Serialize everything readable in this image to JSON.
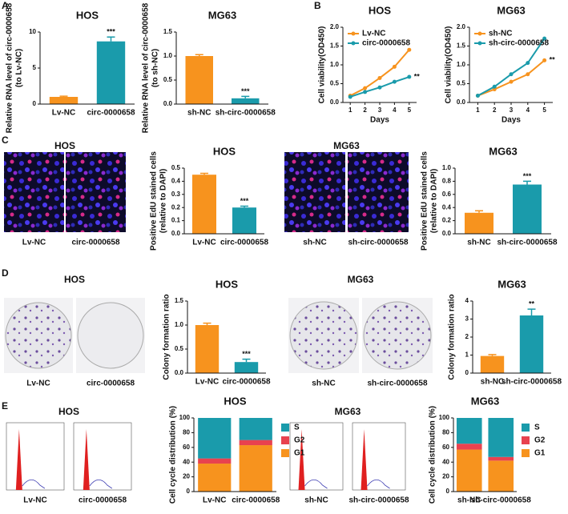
{
  "figure": {
    "panels": [
      "A",
      "B",
      "C",
      "D",
      "E"
    ],
    "image_groups": [
      {
        "title": "HOS",
        "labels": [
          "Lv-NC",
          "circ-0000658"
        ]
      },
      {
        "title": "MG63",
        "labels": [
          "sh-NC",
          "sh-circ-0000658"
        ]
      },
      {
        "title": "HOS",
        "labels": [
          "Lv-NC",
          "circ-0000658"
        ]
      },
      {
        "title": "MG63",
        "labels": [
          "sh-NC",
          "sh-circ-0000658"
        ]
      },
      {
        "title": "HOS",
        "labels": [
          "Lv-NC",
          "circ-0000658"
        ]
      },
      {
        "title": "MG63",
        "labels": [
          "sh-NC",
          "sh-circ-0000658"
        ]
      }
    ]
  },
  "chart_data": [
    {
      "type": "bar",
      "title": "HOS",
      "ylabel": [
        "Relative RNA level of circ-0000658",
        "(to Lv-NC)"
      ],
      "categories": [
        "Lv-NC",
        "circ-0000658"
      ],
      "values": [
        1,
        8.7
      ],
      "errors": [
        0.1,
        0.6
      ],
      "colors": [
        "#f7931e",
        "#1a9bab"
      ],
      "annotation": "***",
      "ylim": [
        0,
        10
      ],
      "yticks": [
        0,
        5,
        10
      ]
    },
    {
      "type": "bar",
      "title": "MG63",
      "ylabel": [
        "Relative RNA level of circ-0000658",
        "(to sh-NC)"
      ],
      "categories": [
        "sh-NC",
        "sh-circ-0000658"
      ],
      "values": [
        1.0,
        0.12
      ],
      "errors": [
        0.03,
        0.04
      ],
      "colors": [
        "#f7931e",
        "#1a9bab"
      ],
      "annotation": "***",
      "ylim": [
        0,
        1.5
      ],
      "yticks": [
        {
          "value": 0,
          "label": "0.0"
        },
        0.5,
        {
          "value": 1,
          "label": "1.0"
        },
        1.5
      ]
    },
    {
      "type": "line",
      "title": "HOS",
      "ylabel": [
        "Cell viability(OD450)"
      ],
      "xlabel": "Days",
      "x": [
        1,
        2,
        3,
        4,
        5
      ],
      "xlim": [
        0.5,
        5.5
      ],
      "xticks": [
        1,
        2,
        3,
        4,
        5
      ],
      "series": [
        {
          "name": "Lv-NC",
          "color": "#f7931e",
          "values": [
            0.18,
            0.38,
            0.65,
            0.95,
            1.4
          ]
        },
        {
          "name": "circ-0000658",
          "color": "#1a9bab",
          "values": [
            0.15,
            0.28,
            0.4,
            0.55,
            0.68
          ]
        }
      ],
      "annotation": "**",
      "ylim": [
        0,
        2
      ],
      "yticks": [
        {
          "value": 0,
          "label": "0.0"
        },
        0.5,
        {
          "value": 1,
          "label": "1.0"
        },
        1.5,
        {
          "value": 2,
          "label": "2.0"
        }
      ]
    },
    {
      "type": "line",
      "title": "MG63",
      "ylabel": [
        "Cell viability(OD450)"
      ],
      "xlabel": "Days",
      "x": [
        1,
        2,
        3,
        4,
        5
      ],
      "xlim": [
        0.5,
        5.5
      ],
      "xticks": [
        1,
        2,
        3,
        4,
        5
      ],
      "series": [
        {
          "name": "sh-NC",
          "color": "#f7931e",
          "values": [
            0.18,
            0.35,
            0.55,
            0.75,
            1.12
          ]
        },
        {
          "name": "sh-circ-0000658",
          "color": "#1a9bab",
          "values": [
            0.18,
            0.42,
            0.75,
            1.05,
            1.7
          ]
        }
      ],
      "annotation": "**",
      "ylim": [
        0,
        2
      ],
      "yticks": [
        {
          "value": 0,
          "label": "0.0"
        },
        0.5,
        {
          "value": 1,
          "label": "1.0"
        },
        1.5,
        {
          "value": 2,
          "label": "2.0"
        }
      ]
    },
    {
      "type": "bar",
      "title": "HOS",
      "ylabel": [
        "Positive EdU stained cells",
        "(relative to DAPI)"
      ],
      "categories": [
        "Lv-NC",
        "circ-0000658"
      ],
      "values": [
        0.45,
        0.2
      ],
      "errors": [
        0.01,
        0.01
      ],
      "colors": [
        "#f7931e",
        "#1a9bab"
      ],
      "annotation": "***",
      "ylim": [
        0,
        0.5
      ],
      "yticks": [
        {
          "value": 0,
          "label": "0.0"
        },
        0.1,
        0.2,
        0.3,
        0.4,
        0.5
      ]
    },
    {
      "type": "bar",
      "title": "MG63",
      "ylabel": [
        "Positive EdU stained cells",
        "(relative to DAPI)"
      ],
      "categories": [
        "sh-NC",
        "sh-circ-0000658"
      ],
      "values": [
        0.32,
        0.75
      ],
      "errors": [
        0.03,
        0.05
      ],
      "colors": [
        "#f7931e",
        "#1a9bab"
      ],
      "annotation": "***",
      "ylim": [
        0,
        1
      ],
      "yticks": [
        {
          "value": 0,
          "label": "0.0"
        },
        0.2,
        0.4,
        0.6,
        0.8,
        {
          "value": 1,
          "label": "1.0"
        }
      ]
    },
    {
      "type": "bar",
      "title": "HOS",
      "ylabel": [
        "Colony formation ratio"
      ],
      "categories": [
        "Lv-NC",
        "circ-0000658"
      ],
      "values": [
        1.0,
        0.23
      ],
      "errors": [
        0.04,
        0.06
      ],
      "colors": [
        "#f7931e",
        "#1a9bab"
      ],
      "annotation": "***",
      "ylim": [
        0,
        1.5
      ],
      "yticks": [
        {
          "value": 0,
          "label": "0.0"
        },
        0.5,
        {
          "value": 1,
          "label": "1.0"
        },
        1.5
      ]
    },
    {
      "type": "bar",
      "title": "MG63",
      "ylabel": [
        "Colony formation ratio"
      ],
      "categories": [
        "sh-NC",
        "sh-circ-0000658"
      ],
      "values": [
        0.95,
        3.2
      ],
      "errors": [
        0.08,
        0.35
      ],
      "colors": [
        "#f7931e",
        "#1a9bab"
      ],
      "annotation": "**",
      "ylim": [
        0,
        4
      ],
      "yticks": [
        0,
        1,
        2,
        3,
        4
      ]
    },
    {
      "type": "stacked_bar",
      "title": "HOS",
      "ylabel": [
        "Cell cycle distribution (%)"
      ],
      "categories": [
        "Lv-NC",
        "circ-0000658"
      ],
      "series": [
        {
          "name": "S",
          "color": "#1a9bab",
          "values": [
            55,
            30
          ]
        },
        {
          "name": "G2",
          "color": "#e8424f",
          "values": [
            7,
            7
          ]
        },
        {
          "name": "G1",
          "color": "#f7931e",
          "values": [
            38,
            63
          ]
        }
      ],
      "ylim": [
        0,
        100
      ],
      "yticks": [
        0,
        20,
        40,
        60,
        80,
        100
      ]
    },
    {
      "type": "stacked_bar",
      "title": "MG63",
      "ylabel": [
        "Cell cycle distribution (%)"
      ],
      "categories": [
        "sh-NC",
        "sh-circ-0000658"
      ],
      "series": [
        {
          "name": "S",
          "color": "#1a9bab",
          "values": [
            35,
            53
          ]
        },
        {
          "name": "G2",
          "color": "#e8424f",
          "values": [
            8,
            5
          ]
        },
        {
          "name": "G1",
          "color": "#f7931e",
          "values": [
            57,
            42
          ]
        }
      ],
      "ylim": [
        0,
        100
      ],
      "yticks": [
        0,
        20,
        40,
        60,
        80,
        100
      ]
    }
  ]
}
